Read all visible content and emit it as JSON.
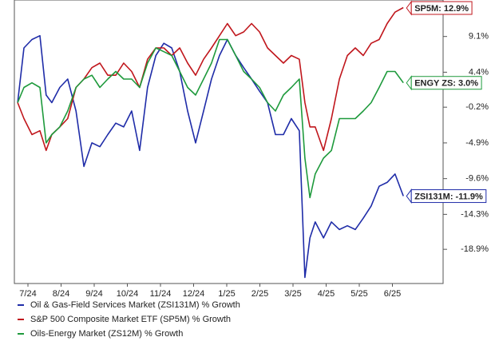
{
  "chart_data": {
    "type": "line",
    "x": [
      -0.31,
      -0.12,
      0.12,
      0.36,
      0.55,
      0.72,
      0.96,
      1.2,
      1.45,
      1.69,
      1.93,
      2.17,
      2.41,
      2.65,
      2.89,
      3.13,
      3.37,
      3.61,
      3.86,
      4.1,
      4.34,
      4.58,
      4.82,
      5.06,
      5.3,
      5.54,
      5.78,
      6.02,
      6.27,
      6.51,
      6.75,
      6.99,
      7.23,
      7.47,
      7.71,
      7.95,
      8.19,
      8.36,
      8.51,
      8.67,
      8.92,
      9.16,
      9.4,
      9.64,
      9.88,
      10.12,
      10.36,
      10.6,
      10.84,
      11.08,
      11.33
    ],
    "xlim": [
      -0.41,
      12.53
    ],
    "xticks": [
      {
        "value": 0,
        "label": "7/24"
      },
      {
        "value": 1,
        "label": "8/24"
      },
      {
        "value": 2,
        "label": "9/24"
      },
      {
        "value": 3,
        "label": "10/24"
      },
      {
        "value": 4,
        "label": "11/24"
      },
      {
        "value": 5,
        "label": "12/24"
      },
      {
        "value": 6,
        "label": "1/25"
      },
      {
        "value": 7,
        "label": "2/25"
      },
      {
        "value": 8,
        "label": "3/25"
      },
      {
        "value": 9,
        "label": "4/25"
      },
      {
        "value": 10,
        "label": "5/25"
      },
      {
        "value": 11,
        "label": "6/25"
      }
    ],
    "ylim": [
      -23.4,
      13.9
    ],
    "yticks": [
      {
        "value": 9.1,
        "label": "9.1%"
      },
      {
        "value": 4.4,
        "label": "4.4%"
      },
      {
        "value": -0.2,
        "label": "-0.2%"
      },
      {
        "value": -4.9,
        "label": "-4.9%"
      },
      {
        "value": -9.6,
        "label": "-9.6%"
      },
      {
        "value": -14.3,
        "label": "-14.3%"
      },
      {
        "value": -18.9,
        "label": "-18.9%"
      }
    ],
    "grid": false,
    "series": [
      {
        "name": "Oil & Gas-Field Services Market (ZSI131M) % Growth",
        "color": "#1f2ca8",
        "end_label": "ZSI131M: -11.9%",
        "values": [
          0.4,
          7.6,
          8.7,
          9.2,
          1.4,
          0.4,
          2.4,
          3.5,
          -0.7,
          -8.0,
          -4.9,
          -5.4,
          -3.8,
          -2.3,
          -2.8,
          -0.7,
          -5.9,
          2.4,
          6.6,
          8.2,
          7.6,
          4.5,
          -0.7,
          -4.9,
          -0.7,
          3.5,
          6.6,
          8.7,
          6.6,
          5.0,
          3.5,
          1.9,
          0.4,
          -3.8,
          -3.8,
          -1.7,
          -3.3,
          -22.6,
          -17.4,
          -15.3,
          -17.4,
          -15.3,
          -16.3,
          -15.8,
          -16.3,
          -14.8,
          -13.2,
          -10.6,
          -10.1,
          -9.0,
          -11.9
        ]
      },
      {
        "name": "S&P 500 Composite Market ETF (SP5M) % Growth",
        "color": "#c0161c",
        "end_label": "SP5M: 12.9%",
        "values": [
          0.4,
          -1.7,
          -3.8,
          -3.3,
          -5.9,
          -3.8,
          -2.8,
          -1.7,
          2.4,
          3.5,
          5.0,
          5.6,
          4.0,
          4.0,
          5.6,
          4.5,
          2.4,
          6.1,
          7.6,
          7.6,
          6.6,
          7.6,
          5.6,
          4.0,
          6.1,
          7.6,
          9.2,
          10.8,
          9.2,
          9.7,
          10.8,
          9.7,
          7.6,
          6.6,
          5.6,
          6.6,
          6.1,
          0.4,
          -2.8,
          -2.8,
          -5.9,
          -1.7,
          3.5,
          6.6,
          7.6,
          6.6,
          8.2,
          8.7,
          10.8,
          12.3,
          12.9
        ]
      },
      {
        "name": "Oils-Energy Market (ZS12M) % Growth",
        "color": "#1e9a3c",
        "end_label": "ENGY ZS: 3.0%",
        "values": [
          0.4,
          2.4,
          3.0,
          2.4,
          -4.9,
          -3.8,
          -2.8,
          -0.7,
          2.4,
          3.5,
          4.0,
          2.4,
          3.5,
          4.5,
          3.5,
          3.5,
          2.4,
          5.6,
          7.6,
          7.1,
          6.6,
          4.5,
          2.4,
          1.4,
          3.5,
          5.6,
          8.7,
          8.7,
          6.6,
          4.5,
          3.5,
          2.4,
          0.4,
          -0.7,
          1.4,
          2.4,
          3.5,
          -6.9,
          -12.1,
          -9.0,
          -6.9,
          -5.9,
          -1.7,
          -1.7,
          -1.7,
          -0.7,
          0.4,
          2.4,
          4.5,
          4.5,
          3.0
        ]
      }
    ]
  }
}
